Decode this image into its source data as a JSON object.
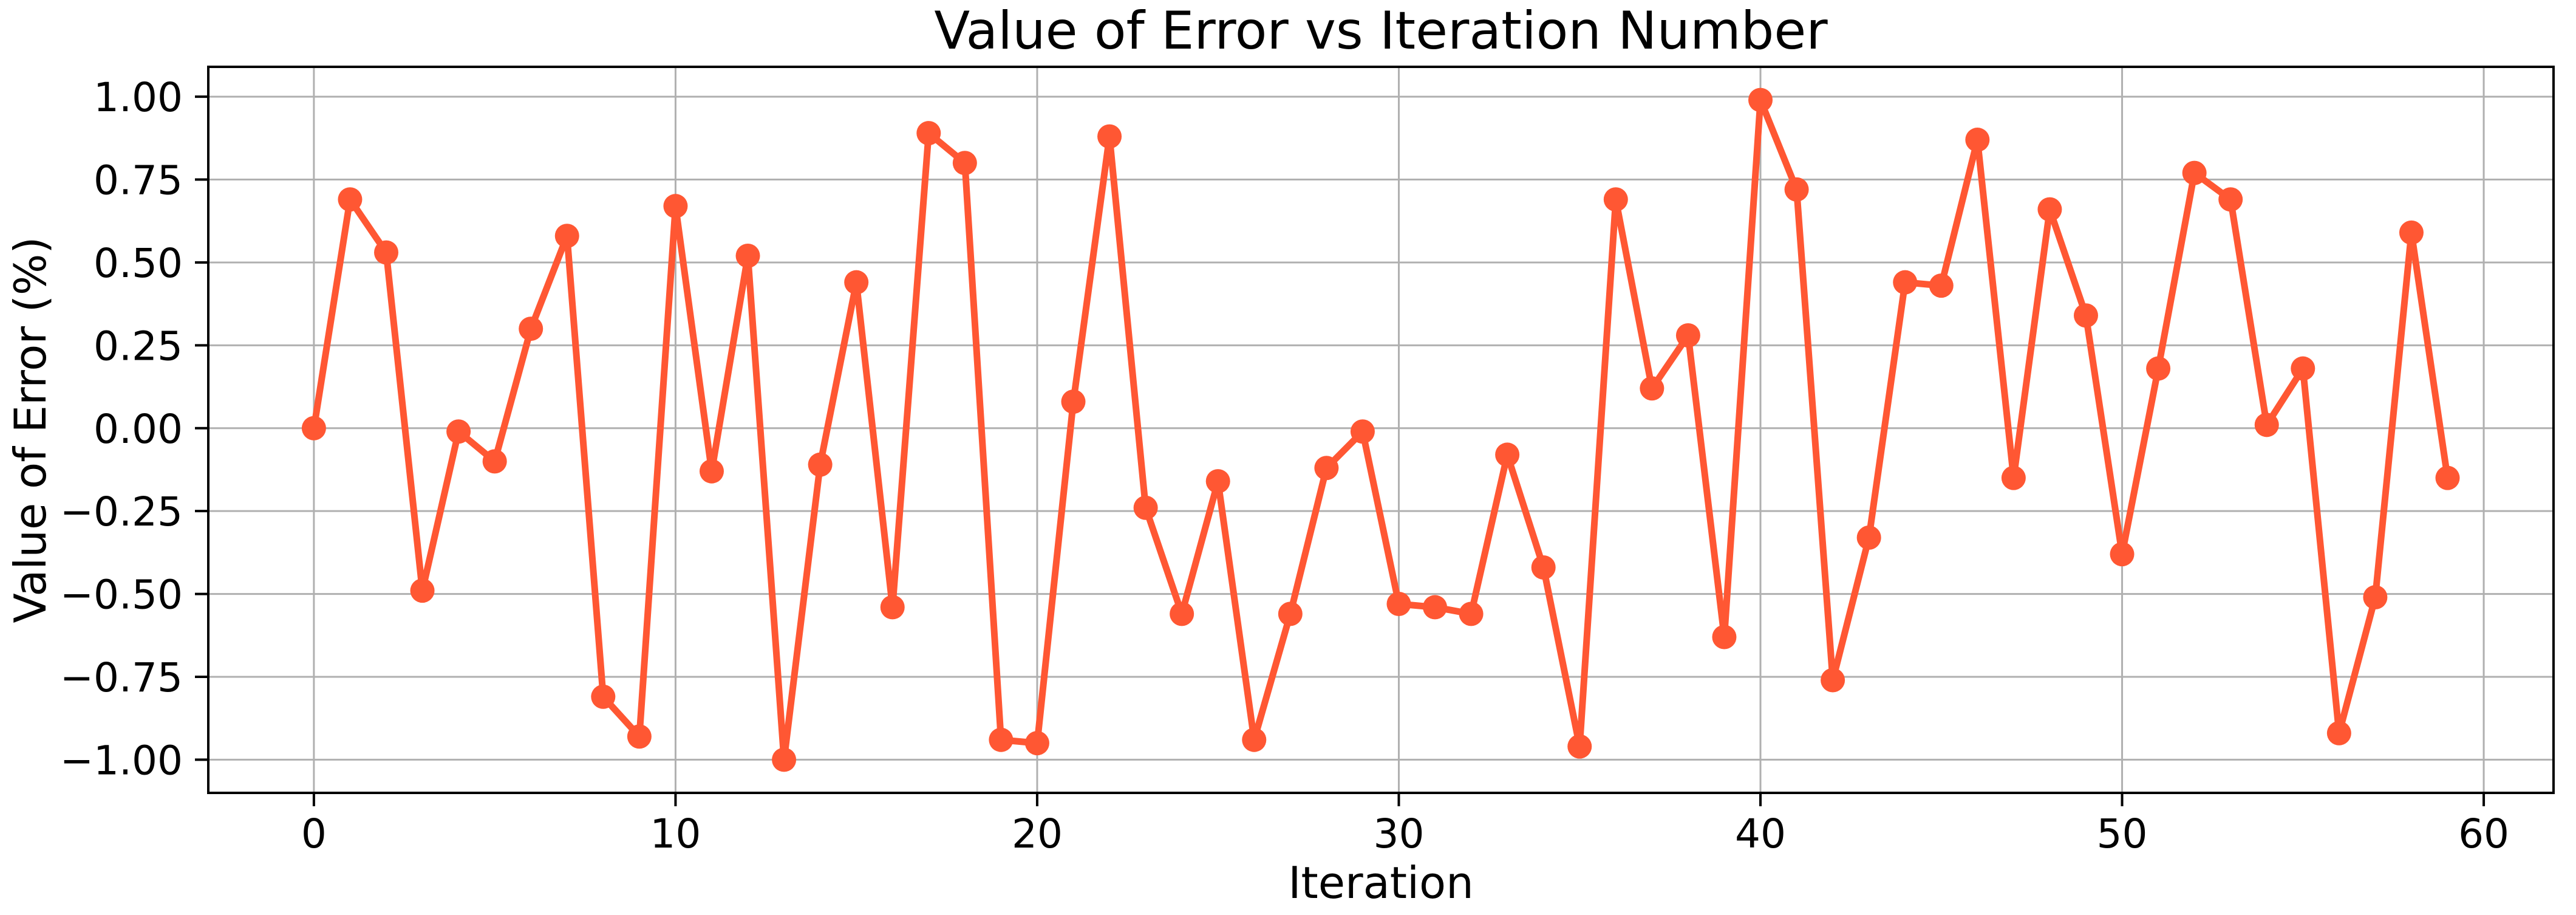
{
  "chart_data": {
    "type": "line",
    "title": "Value of Error vs Iteration Number",
    "xlabel": "Iteration",
    "ylabel": "Value of Error (%)",
    "x": [
      0,
      1,
      2,
      3,
      4,
      5,
      6,
      7,
      8,
      9,
      10,
      11,
      12,
      13,
      14,
      15,
      16,
      17,
      18,
      19,
      20,
      21,
      22,
      23,
      24,
      25,
      26,
      27,
      28,
      29,
      30,
      31,
      32,
      33,
      34,
      35,
      36,
      37,
      38,
      39,
      40,
      41,
      42,
      43,
      44,
      45,
      46,
      47,
      48,
      49,
      50,
      51,
      52,
      53,
      54,
      55,
      56,
      57,
      58,
      59
    ],
    "values": [
      0.0,
      0.69,
      0.53,
      -0.49,
      -0.01,
      -0.1,
      0.3,
      0.58,
      -0.81,
      -0.93,
      0.67,
      -0.13,
      0.52,
      -1.0,
      -0.11,
      0.44,
      -0.54,
      0.89,
      0.8,
      -0.94,
      -0.95,
      0.08,
      0.88,
      -0.24,
      -0.56,
      -0.16,
      -0.94,
      -0.56,
      -0.12,
      -0.01,
      -0.53,
      -0.54,
      -0.56,
      -0.08,
      -0.42,
      -0.96,
      0.69,
      0.12,
      0.28,
      -0.63,
      0.99,
      0.72,
      -0.76,
      -0.33,
      0.44,
      0.43,
      0.87,
      -0.15,
      0.66,
      0.34,
      -0.38,
      0.18,
      0.77,
      0.69,
      0.01,
      0.18,
      -0.92,
      -0.51,
      0.59,
      -0.15
    ],
    "xlim": [
      -2.92,
      61.93
    ],
    "ylim": [
      -1.1,
      1.09
    ],
    "xticks": [
      0,
      10,
      20,
      30,
      40,
      50,
      60
    ],
    "xtick_labels": [
      "0",
      "10",
      "20",
      "30",
      "40",
      "50",
      "60"
    ],
    "yticks": [
      1.0,
      0.75,
      0.5,
      0.25,
      0.0,
      -0.25,
      -0.5,
      -0.75,
      -1.0
    ],
    "ytick_labels": [
      "1.00",
      "0.75",
      "0.50",
      "0.25",
      "0.00",
      "−0.25",
      "−0.50",
      "−0.75",
      "−1.00"
    ],
    "grid": true,
    "legend": "none",
    "series_color": "#FF5733",
    "grid_color": "#b0b0b0",
    "axis_color": "#000000",
    "text_color": "#000000",
    "marker": "circle"
  }
}
